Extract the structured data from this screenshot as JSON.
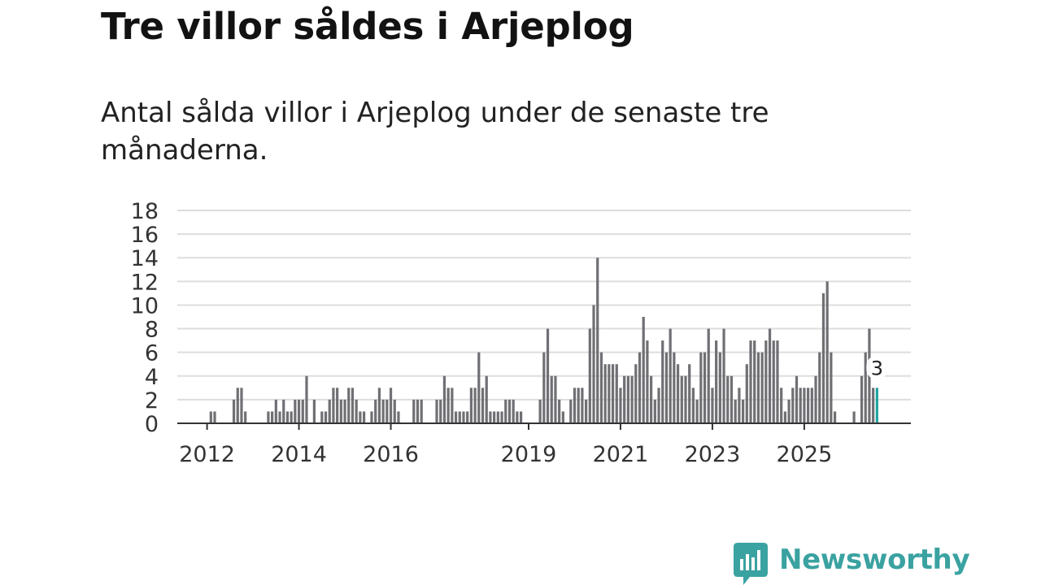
{
  "title": "Tre villor såldes i Arjeplog",
  "subtitle": "Antal sålda villor i Arjeplog under de senaste tre månaderna.",
  "brand": {
    "name": "Newsworthy",
    "icon": "newsworthy-logo-icon",
    "color": "#3aa2a1"
  },
  "chart_data": {
    "type": "bar",
    "title": "",
    "xlabel": "",
    "ylabel": "",
    "ylim": [
      0,
      18
    ],
    "yticks": [
      0,
      2,
      4,
      6,
      8,
      10,
      12,
      14,
      16,
      18
    ],
    "xticks": [
      "2012",
      "2014",
      "2016",
      "2019",
      "2021",
      "2023",
      "2025"
    ],
    "colors": {
      "bar": "#6f6f74",
      "highlight": "#20a5a0",
      "grid": "#dddddd",
      "axis": "#333333"
    },
    "highlight_label": "3",
    "series": [
      {
        "name": "Antal sålda villor",
        "values": [
          0,
          0,
          0,
          0,
          0,
          0,
          0,
          1,
          1,
          0,
          0,
          0,
          0,
          2,
          3,
          3,
          1,
          0,
          0,
          0,
          0,
          0,
          1,
          1,
          2,
          1,
          2,
          1,
          1,
          2,
          2,
          2,
          4,
          0,
          2,
          0,
          1,
          1,
          2,
          3,
          3,
          2,
          2,
          3,
          3,
          2,
          1,
          1,
          0,
          1,
          2,
          3,
          2,
          2,
          3,
          2,
          1,
          0,
          0,
          0,
          2,
          2,
          2,
          0,
          0,
          0,
          2,
          2,
          4,
          3,
          3,
          1,
          1,
          1,
          1,
          3,
          3,
          6,
          3,
          4,
          1,
          1,
          1,
          1,
          2,
          2,
          2,
          1,
          1,
          0,
          0,
          0,
          0,
          2,
          6,
          8,
          4,
          4,
          2,
          1,
          0,
          2,
          3,
          3,
          3,
          2,
          8,
          10,
          14,
          6,
          5,
          5,
          5,
          5,
          3,
          4,
          4,
          4,
          5,
          6,
          9,
          7,
          4,
          2,
          3,
          7,
          6,
          8,
          6,
          5,
          4,
          4,
          5,
          3,
          2,
          6,
          6,
          8,
          3,
          7,
          6,
          8,
          4,
          4,
          2,
          3,
          2,
          5,
          7,
          7,
          6,
          6,
          7,
          8,
          7,
          7,
          3,
          1,
          2,
          3,
          4,
          3,
          3,
          3,
          3,
          4,
          6,
          11,
          12,
          6,
          1,
          0,
          0,
          0,
          0,
          1,
          0,
          4,
          6,
          8,
          3,
          3
        ]
      }
    ]
  }
}
